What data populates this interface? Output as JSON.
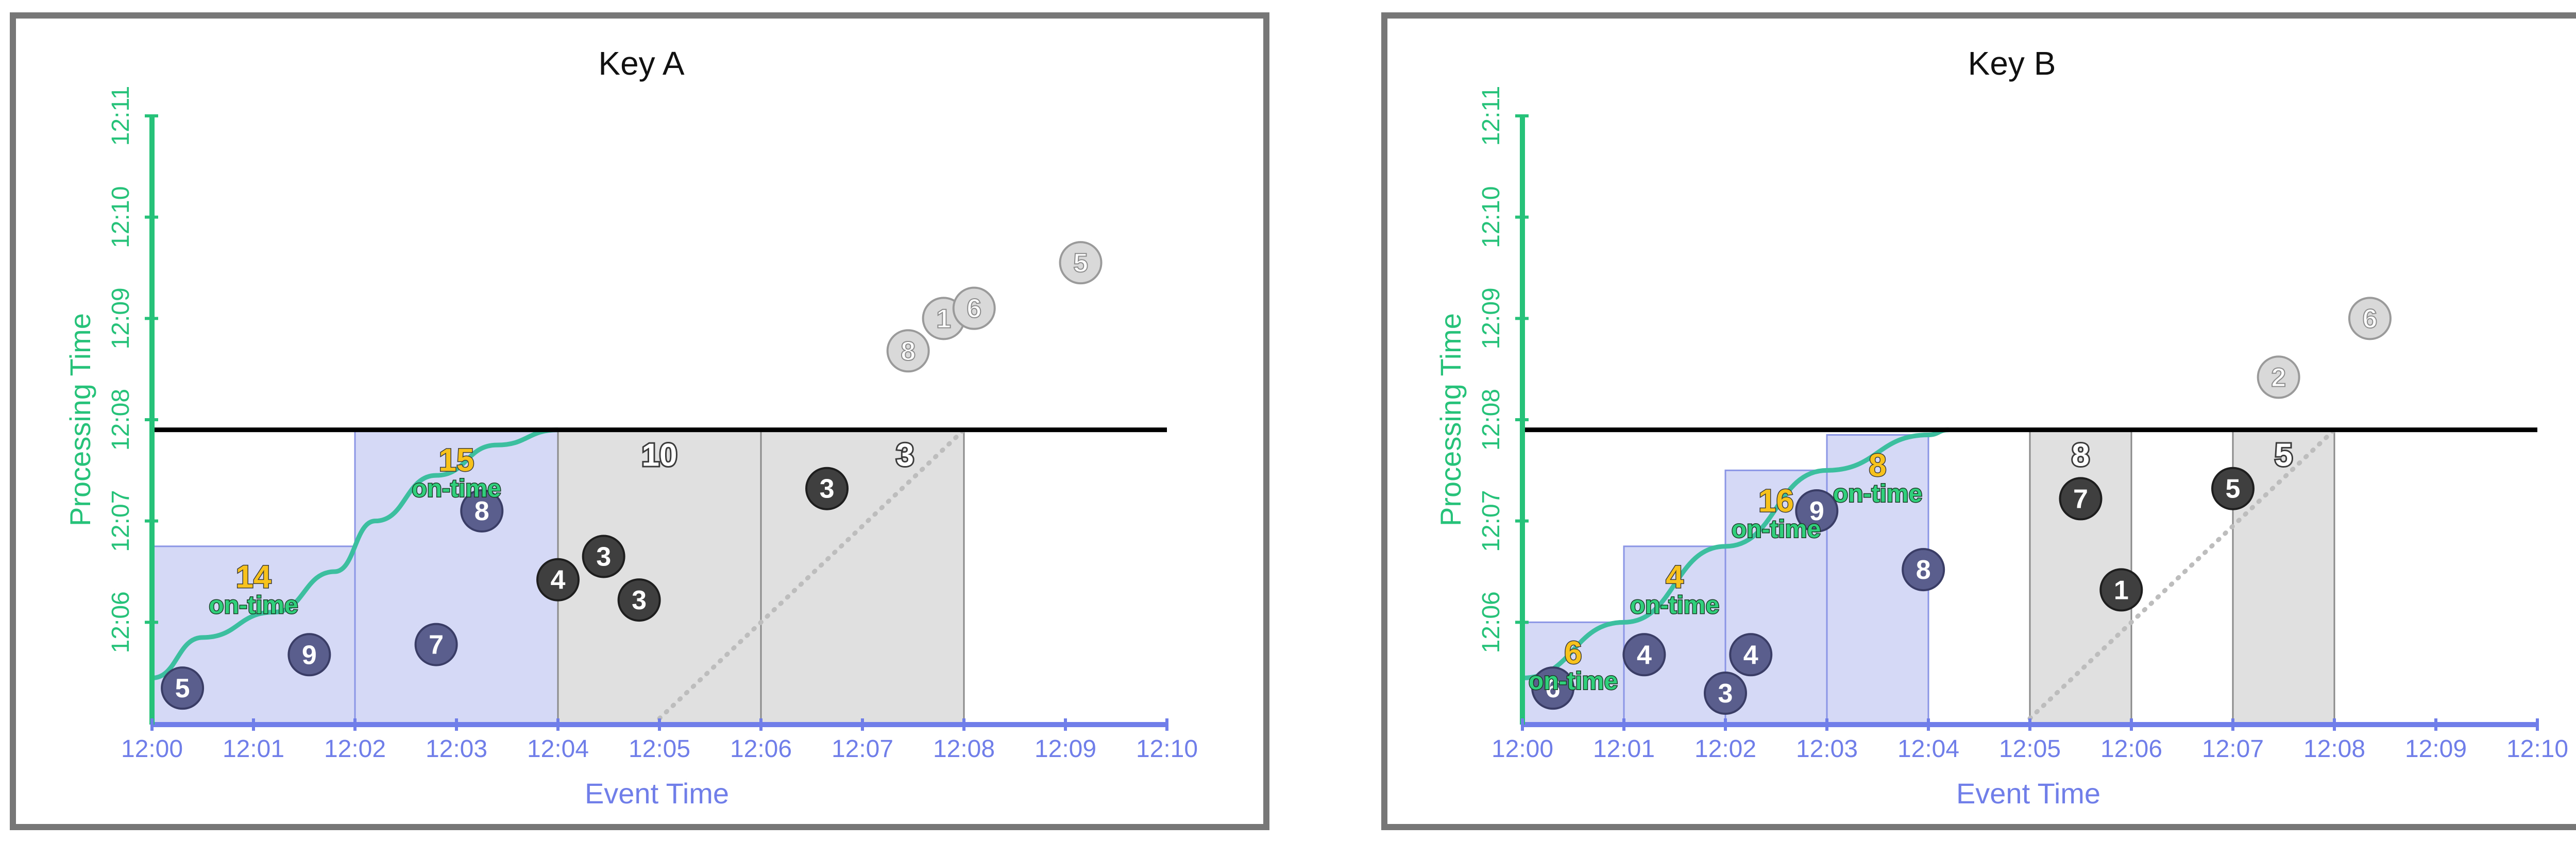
{
  "colors": {
    "axis_x": "#6f7ee8",
    "axis_y": "#27c27a",
    "watermark": "#000000",
    "ontime_window_fill": "#d5d9f6",
    "ontime_window_stroke": "#8b95e6",
    "dropped_window_fill": "#e0e0e0",
    "dropped_window_stroke": "#8a8a8a",
    "ontime_point": "#5a5e8c",
    "late_point": "#3f3f3f",
    "too_late_point": "#d9d9d9",
    "count_text": "#f7c21b",
    "ontime_text": "#2fcf7b",
    "frame": "#777777"
  },
  "chart_data": [
    {
      "type": "scatter",
      "title": "Key A",
      "xlabel": "Event Time",
      "ylabel": "Processing Time",
      "x_ticks": [
        "12:00",
        "12:01",
        "12:02",
        "12:03",
        "12:04",
        "12:05",
        "12:06",
        "12:07",
        "12:08",
        "12:09",
        "12:10"
      ],
      "y_ticks": [
        "12:06",
        "12:07",
        "12:08",
        "12:09",
        "12:10",
        "12:11"
      ],
      "xlim_minutes": [
        0,
        10
      ],
      "ylim_minutes": [
        5,
        11
      ],
      "watermark_at": 7.9,
      "windows": [
        {
          "start": 0,
          "end": 2,
          "count": "14",
          "label": "on-time",
          "status": "ontime",
          "top": 6.75
        },
        {
          "start": 2,
          "end": 4,
          "count": "15",
          "label": "on-time",
          "status": "ontime",
          "top": 7.9
        },
        {
          "start": 4,
          "end": 6,
          "count": "10",
          "label": "",
          "status": "dropped",
          "top": 7.9
        },
        {
          "start": 6,
          "end": 8,
          "count": "3",
          "label": "",
          "status": "dropped",
          "top": 7.9
        }
      ],
      "points": [
        {
          "value": "5",
          "x": 0.3,
          "y": 5.35,
          "status": "ontime"
        },
        {
          "value": "9",
          "x": 1.55,
          "y": 5.68,
          "status": "ontime"
        },
        {
          "value": "7",
          "x": 2.8,
          "y": 5.78,
          "status": "ontime"
        },
        {
          "value": "8",
          "x": 3.25,
          "y": 7.1,
          "status": "ontime"
        },
        {
          "value": "4",
          "x": 4.0,
          "y": 6.42,
          "status": "late"
        },
        {
          "value": "3",
          "x": 4.45,
          "y": 6.65,
          "status": "late"
        },
        {
          "value": "3",
          "x": 4.8,
          "y": 6.22,
          "status": "late"
        },
        {
          "value": "3",
          "x": 6.65,
          "y": 7.32,
          "status": "late"
        },
        {
          "value": "8",
          "x": 7.45,
          "y": 8.68,
          "status": "toolate"
        },
        {
          "value": "1",
          "x": 7.8,
          "y": 9.0,
          "status": "toolate"
        },
        {
          "value": "6",
          "x": 8.1,
          "y": 9.1,
          "status": "toolate"
        },
        {
          "value": "5",
          "x": 9.15,
          "y": 9.55,
          "status": "toolate"
        }
      ],
      "watermark_curve": [
        [
          0,
          5.45
        ],
        [
          0.5,
          5.85
        ],
        [
          1.2,
          6.1
        ],
        [
          1.8,
          6.5
        ],
        [
          2.2,
          7.0
        ],
        [
          2.8,
          7.45
        ],
        [
          3.4,
          7.75
        ],
        [
          4.0,
          7.9
        ]
      ],
      "dotted_line": [
        [
          5,
          5.05
        ],
        [
          8,
          7.9
        ]
      ]
    },
    {
      "type": "scatter",
      "title": "Key B",
      "xlabel": "Event Time",
      "ylabel": "Processing Time",
      "x_ticks": [
        "12:00",
        "12:01",
        "12:02",
        "12:03",
        "12:04",
        "12:05",
        "12:06",
        "12:07",
        "12:08",
        "12:09",
        "12:10"
      ],
      "y_ticks": [
        "12:06",
        "12:07",
        "12:08",
        "12:09",
        "12:10",
        "12:11"
      ],
      "xlim_minutes": [
        0,
        10
      ],
      "ylim_minutes": [
        5,
        11
      ],
      "watermark_at": 7.9,
      "windows": [
        {
          "start": 0,
          "end": 1,
          "count": "6",
          "label": "on-time",
          "status": "ontime",
          "top": 6.0
        },
        {
          "start": 1,
          "end": 2,
          "count": "4",
          "label": "on-time",
          "status": "ontime",
          "top": 6.75
        },
        {
          "start": 2,
          "end": 3,
          "count": "16",
          "label": "on-time",
          "status": "ontime",
          "top": 7.5
        },
        {
          "start": 3,
          "end": 4,
          "count": "8",
          "label": "on-time",
          "status": "ontime",
          "top": 7.85
        },
        {
          "start": 5,
          "end": 6,
          "count": "8",
          "label": "",
          "status": "dropped",
          "top": 7.9
        },
        {
          "start": 7,
          "end": 8,
          "count": "5",
          "label": "",
          "status": "dropped",
          "top": 7.9
        }
      ],
      "points": [
        {
          "value": "6",
          "x": 0.3,
          "y": 5.35,
          "status": "ontime"
        },
        {
          "value": "4",
          "x": 1.2,
          "y": 5.68,
          "status": "ontime"
        },
        {
          "value": "3",
          "x": 2.0,
          "y": 5.3,
          "status": "ontime"
        },
        {
          "value": "4",
          "x": 2.25,
          "y": 5.68,
          "status": "ontime"
        },
        {
          "value": "9",
          "x": 2.9,
          "y": 7.1,
          "status": "ontime"
        },
        {
          "value": "8",
          "x": 3.95,
          "y": 6.52,
          "status": "ontime"
        },
        {
          "value": "7",
          "x": 5.5,
          "y": 7.22,
          "status": "late"
        },
        {
          "value": "1",
          "x": 5.9,
          "y": 6.32,
          "status": "late"
        },
        {
          "value": "5",
          "x": 7.0,
          "y": 7.32,
          "status": "late"
        },
        {
          "value": "2",
          "x": 7.45,
          "y": 8.42,
          "status": "toolate"
        },
        {
          "value": "6",
          "x": 8.35,
          "y": 9.0,
          "status": "toolate"
        }
      ],
      "watermark_curve": [
        [
          0,
          5.45
        ],
        [
          1,
          6.0
        ],
        [
          2,
          6.75
        ],
        [
          3,
          7.5
        ],
        [
          4,
          7.85
        ],
        [
          4.2,
          7.9
        ]
      ],
      "dotted_line": [
        [
          5,
          5.05
        ],
        [
          8,
          7.9
        ]
      ]
    }
  ]
}
